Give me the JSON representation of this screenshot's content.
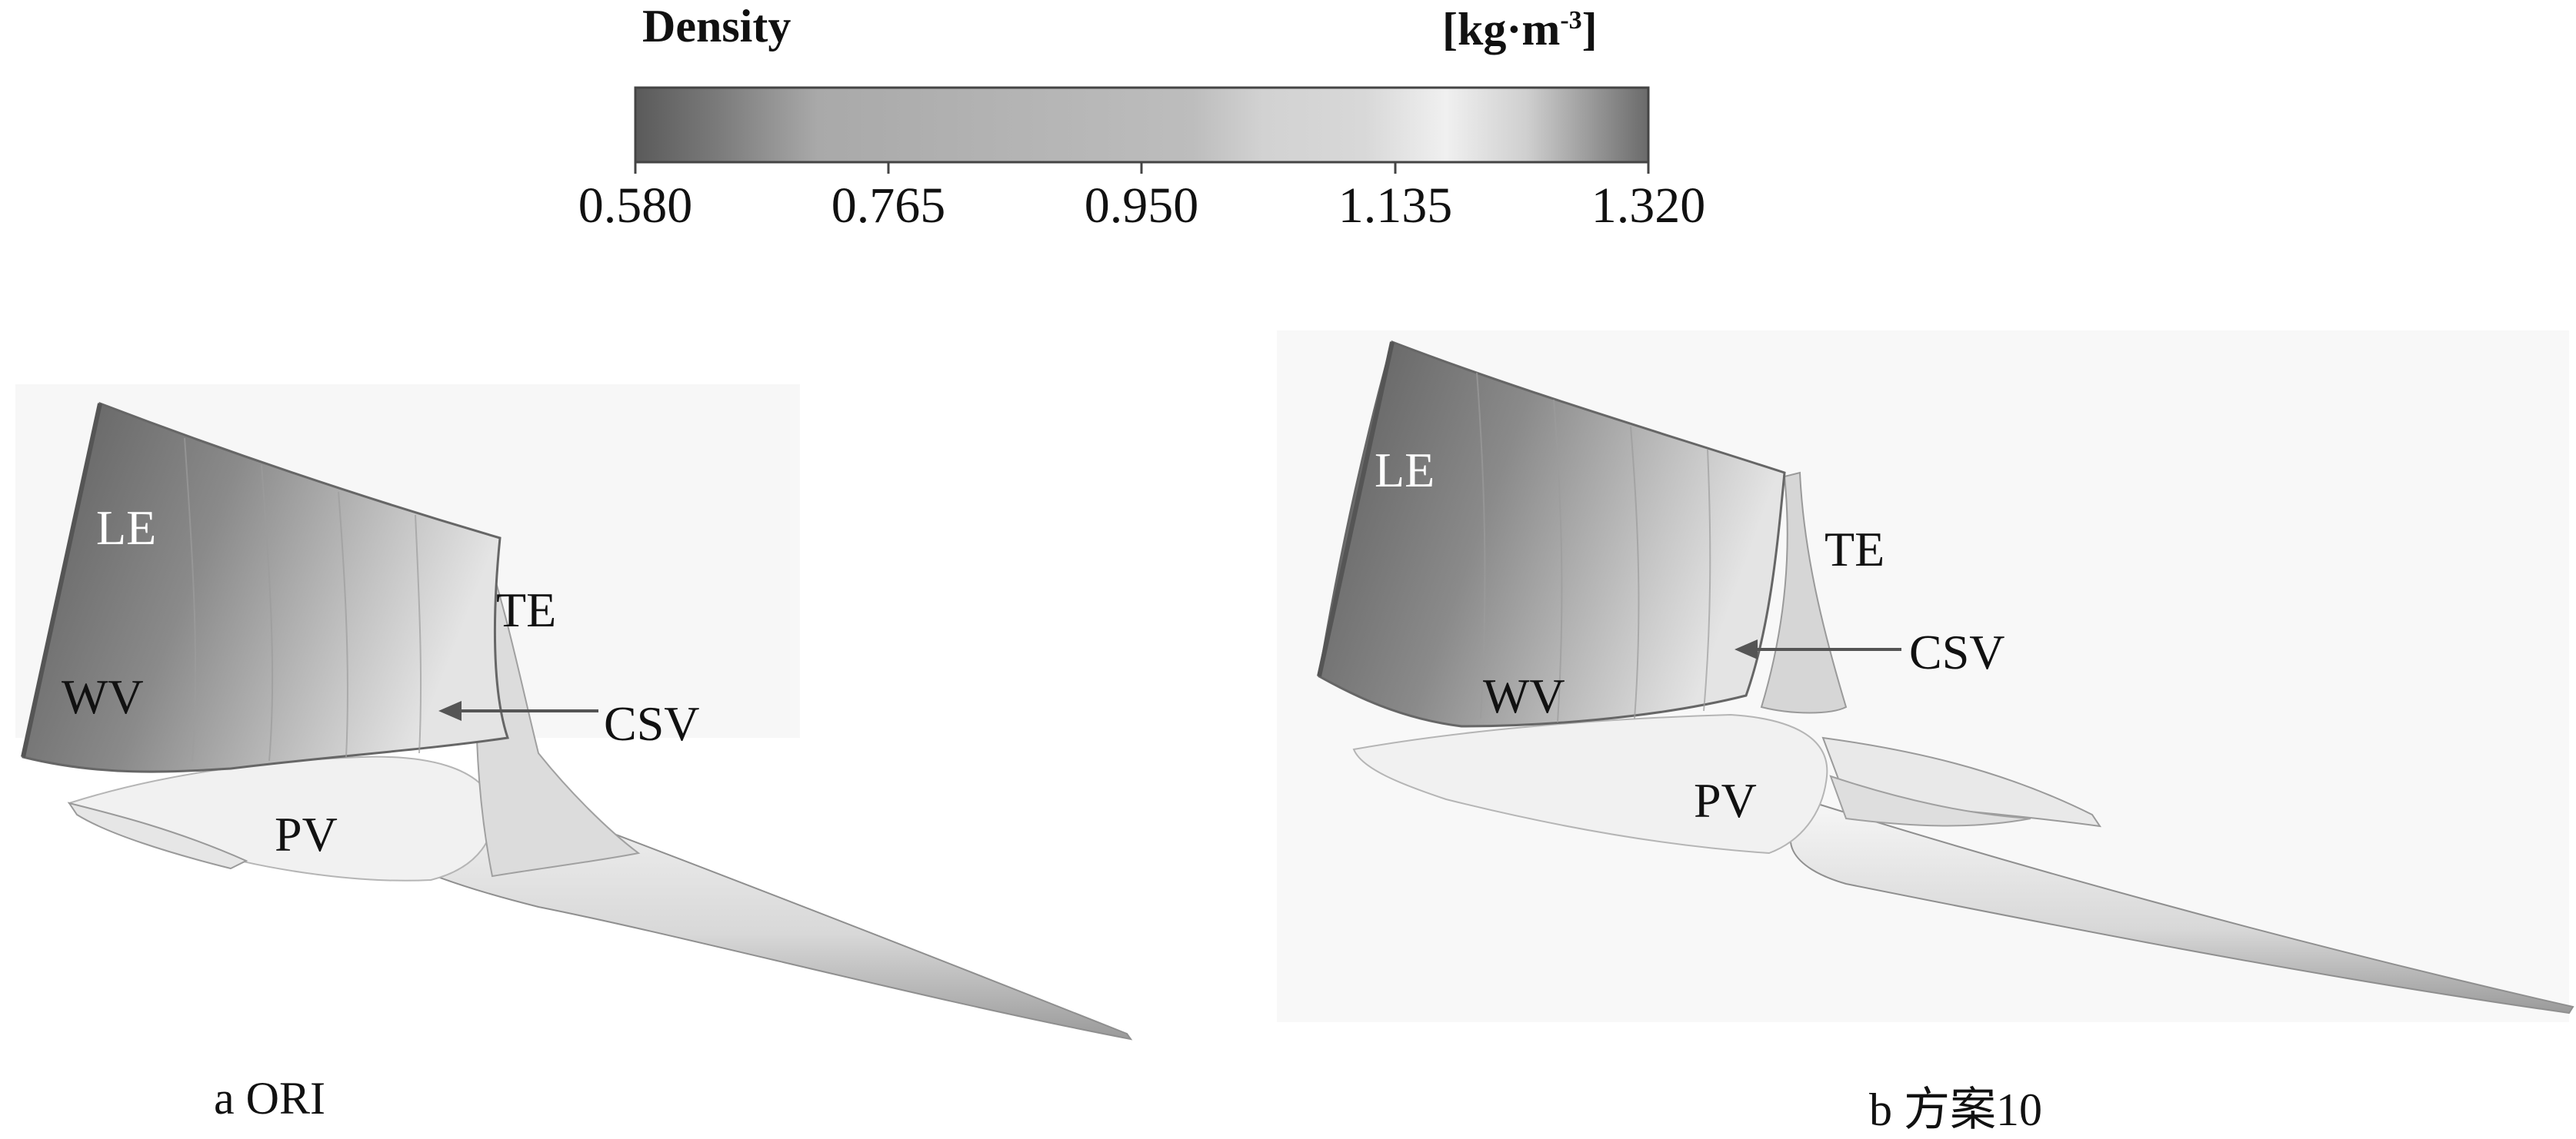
{
  "colorbar": {
    "title": "Density",
    "units": "[kg·m",
    "units_exp": "-3",
    "units_close": "]",
    "ticks": [
      "0.580",
      "0.765",
      "0.950",
      "1.135",
      "1.320"
    ],
    "colors": {
      "low": "#5a5a5a",
      "mid_low": "#a8a8a8",
      "mid": "#b6b6b6",
      "high": "#efefef",
      "max": "#6a6a6a"
    }
  },
  "panels": [
    {
      "caption": "a ORI",
      "labels": {
        "le": "LE",
        "te": "TE",
        "wv": "WV",
        "csv": "CSV",
        "pv": "PV"
      }
    },
    {
      "caption": "b 方案10",
      "labels": {
        "le": "LE",
        "te": "TE",
        "wv": "WV",
        "csv": "CSV",
        "pv": "PV"
      }
    }
  ]
}
